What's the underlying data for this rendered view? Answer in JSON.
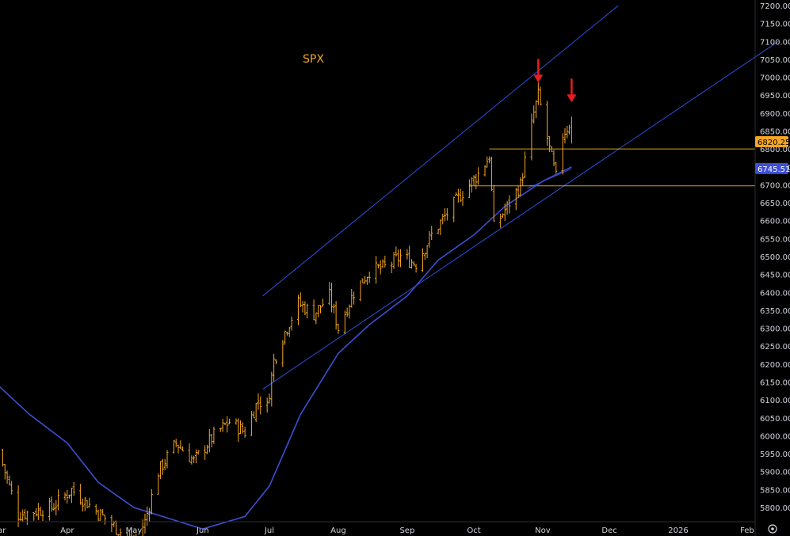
{
  "chart_data": {
    "type": "line",
    "title": "SPX",
    "x": [
      "Mar",
      "Apr",
      "May",
      "Jun",
      "Jul",
      "Aug",
      "Sep",
      "Oct",
      "Nov",
      "Dec",
      "2026",
      "Feb"
    ],
    "ylim": [
      5750,
      7200
    ],
    "yticks": [
      5800,
      5850,
      5900,
      5950,
      6000,
      6050,
      6100,
      6150,
      6200,
      6250,
      6300,
      6350,
      6400,
      6450,
      6500,
      6550,
      6600,
      6650,
      6700,
      6750,
      6800,
      6850,
      6900,
      6950,
      7000,
      7050,
      7100,
      7150,
      7200
    ],
    "series": [
      {
        "style": "price bars",
        "color": "#f5a623",
        "points": [
          [
            "2025-03-01",
            5960
          ],
          [
            "2025-03-10",
            5780
          ],
          [
            "2025-03-25",
            5800
          ],
          [
            "2025-04-03",
            5850
          ],
          [
            "2025-05-01",
            5700
          ],
          [
            "2025-05-06",
            5760
          ],
          [
            "2025-05-12",
            5900
          ],
          [
            "2025-05-20",
            5980
          ],
          [
            "2025-05-28",
            5930
          ],
          [
            "2025-06-06",
            6000
          ],
          [
            "2025-06-13",
            6040
          ],
          [
            "2025-06-20",
            6010
          ],
          [
            "2025-06-26",
            6100
          ],
          [
            "2025-06-30",
            6080
          ],
          [
            "2025-07-03",
            6210
          ],
          [
            "2025-07-08",
            6290
          ],
          [
            "2025-07-14",
            6370
          ],
          [
            "2025-07-21",
            6340
          ],
          [
            "2025-07-28",
            6390
          ],
          [
            "2025-08-01",
            6300
          ],
          [
            "2025-08-08",
            6400
          ],
          [
            "2025-08-15",
            6460
          ],
          [
            "2025-08-22",
            6470
          ],
          [
            "2025-08-29",
            6500
          ],
          [
            "2025-09-05",
            6480
          ],
          [
            "2025-09-12",
            6560
          ],
          [
            "2025-09-19",
            6620
          ],
          [
            "2025-09-26",
            6680
          ],
          [
            "2025-10-03",
            6730
          ],
          [
            "2025-10-08",
            6780
          ],
          [
            "2025-10-10",
            6580
          ],
          [
            "2025-10-16",
            6640
          ],
          [
            "2025-10-22",
            6700
          ],
          [
            "2025-10-28",
            6900
          ],
          [
            "2025-10-30",
            6950
          ],
          [
            "2025-11-04",
            6800
          ],
          [
            "2025-11-07",
            6720
          ],
          [
            "2025-11-10",
            6840
          ],
          [
            "2025-11-13",
            6870
          ],
          [
            "2025-11-14",
            6820.25
          ]
        ]
      },
      {
        "style": "moving average",
        "color": "#3c4fd1",
        "last": 6745.51,
        "points": [
          [
            "2025-03-01",
            6140
          ],
          [
            "2025-03-15",
            6060
          ],
          [
            "2025-04-01",
            5980
          ],
          [
            "2025-04-15",
            5870
          ],
          [
            "2025-05-01",
            5800
          ],
          [
            "2025-06-01",
            5740
          ],
          [
            "2025-06-20",
            5775
          ],
          [
            "2025-07-01",
            5860
          ],
          [
            "2025-07-15",
            6060
          ],
          [
            "2025-08-01",
            6230
          ],
          [
            "2025-08-15",
            6310
          ],
          [
            "2025-09-01",
            6390
          ],
          [
            "2025-09-15",
            6490
          ],
          [
            "2025-10-01",
            6560
          ],
          [
            "2025-10-15",
            6640
          ],
          [
            "2025-11-01",
            6710
          ],
          [
            "2025-11-14",
            6750
          ]
        ]
      }
    ],
    "channel_lines": [
      {
        "color": "#2e4fe0",
        "from": [
          "2025-06-28",
          6390
        ],
        "to": [
          "2025-12-05",
          7200
        ]
      },
      {
        "color": "#2e4fe0",
        "from": [
          "2025-06-28",
          6130
        ],
        "to": [
          "2026-02-15",
          7100
        ]
      },
      {
        "color": "#2e4fe0",
        "from": [
          "2025-10-25",
          6690
        ],
        "to": [
          "2025-11-14",
          6745
        ]
      }
    ],
    "horizontal_lines": [
      {
        "color": "#d4a21e",
        "value": 6800,
        "from": "2025-10-08"
      },
      {
        "color": "#d4a21e",
        "value": 6697,
        "from": "2025-09-29"
      }
    ],
    "arrows": [
      {
        "color": "#e81c1c",
        "at": [
          "2025-10-30",
          6985
        ]
      },
      {
        "color": "#e81c1c",
        "at": [
          "2025-11-14",
          6930
        ]
      }
    ],
    "price_tags": [
      {
        "label": "6820.25",
        "value": 6820.25,
        "bg": "#f5a623",
        "fg": "#000000"
      },
      {
        "label": "6745.51",
        "value": 6745.51,
        "bg": "#3d4fd6",
        "fg": "#ffffff"
      }
    ],
    "grid": false,
    "legend": "none"
  },
  "corner_icon": "settings-gear-icon"
}
